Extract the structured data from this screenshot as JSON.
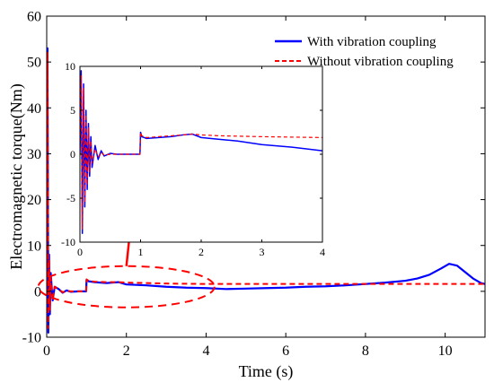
{
  "chart_data": [
    {
      "type": "line",
      "xlabel": "Time (s)",
      "ylabel": "Electromagnetic torque(Nm)",
      "xlim": [
        0,
        11
      ],
      "ylim": [
        -10,
        60
      ],
      "xticks": [
        "0",
        "2",
        "4",
        "6",
        "8",
        "10"
      ],
      "yticks": [
        "-10",
        "0",
        "10",
        "20",
        "30",
        "40",
        "50",
        "60"
      ],
      "grid": false,
      "legend": "top-right",
      "series": [
        {
          "name": "With vibration coupling",
          "color": "#0000ff",
          "style": "solid",
          "x": [
            0,
            0.01,
            0.02,
            0.04,
            0.06,
            0.08,
            0.1,
            0.15,
            0.2,
            0.3,
            0.4,
            0.5,
            0.6,
            0.8,
            0.99,
            1.0,
            1.05,
            1.2,
            1.5,
            1.8,
            2.0,
            2.5,
            3.0,
            3.5,
            4.0,
            4.5,
            5.0,
            5.5,
            6.0,
            6.5,
            7.0,
            7.5,
            8.0,
            8.5,
            9.0,
            9.3,
            9.6,
            9.9,
            10.1,
            10.3,
            10.5,
            10.7,
            10.9,
            11.0
          ],
          "y": [
            0,
            35,
            53,
            -9,
            8,
            -5,
            4,
            -2,
            1,
            0.5,
            -0.3,
            0.2,
            -0.1,
            0,
            0,
            2.5,
            2.2,
            2.0,
            1.8,
            2.0,
            1.5,
            1.3,
            1.0,
            0.8,
            0.7,
            0.5,
            0.6,
            0.7,
            0.8,
            1.0,
            1.1,
            1.3,
            1.6,
            1.9,
            2.3,
            2.8,
            3.6,
            5.0,
            6.0,
            5.6,
            4.2,
            2.8,
            1.8,
            1.6
          ]
        },
        {
          "name": "Without vibration coupling",
          "color": "#ff0000",
          "style": "dashed",
          "x": [
            0,
            0.01,
            0.02,
            0.04,
            0.06,
            0.08,
            0.1,
            0.15,
            0.2,
            0.3,
            0.4,
            0.5,
            0.6,
            0.8,
            0.99,
            1.0,
            1.05,
            1.2,
            1.5,
            1.8,
            2.0,
            2.5,
            3.0,
            4.0,
            6.0,
            8.0,
            10.0,
            11.0
          ],
          "y": [
            0,
            34,
            52,
            -8,
            7,
            -4,
            3,
            -2,
            1,
            0.4,
            -0.2,
            0.1,
            0,
            0,
            0,
            2.6,
            2.3,
            2.1,
            2.0,
            2.0,
            1.9,
            1.8,
            1.7,
            1.6,
            1.6,
            1.6,
            1.6,
            1.6
          ]
        }
      ]
    },
    {
      "type": "line",
      "position": "inset",
      "xlim": [
        0,
        4
      ],
      "ylim": [
        -10,
        10
      ],
      "xticks": [
        "0",
        "1",
        "2",
        "3",
        "4"
      ],
      "yticks": [
        "-10",
        "-5",
        "0",
        "5",
        "10"
      ],
      "series": [
        {
          "name": "With vibration coupling",
          "color": "#0000ff",
          "style": "solid",
          "x": [
            0,
            0.02,
            0.04,
            0.06,
            0.08,
            0.1,
            0.12,
            0.14,
            0.16,
            0.18,
            0.2,
            0.25,
            0.3,
            0.35,
            0.4,
            0.5,
            0.6,
            0.7,
            0.8,
            0.9,
            0.99,
            1.0,
            1.02,
            1.1,
            1.3,
            1.5,
            1.7,
            1.85,
            2.0,
            2.3,
            2.6,
            3.0,
            3.5,
            4.0
          ],
          "y": [
            0,
            9.5,
            -9,
            8,
            -6,
            5,
            -4,
            3.5,
            -2.5,
            2,
            -1.5,
            1,
            -0.6,
            0.4,
            -0.2,
            0.1,
            0,
            0,
            0,
            0,
            0,
            2.5,
            2.0,
            1.8,
            1.9,
            2.0,
            2.2,
            2.3,
            1.9,
            1.7,
            1.5,
            1.1,
            0.8,
            0.4
          ]
        },
        {
          "name": "Without vibration coupling",
          "color": "#ff0000",
          "style": "dashed",
          "x": [
            0,
            0.02,
            0.04,
            0.06,
            0.08,
            0.1,
            0.12,
            0.14,
            0.16,
            0.18,
            0.2,
            0.25,
            0.3,
            0.35,
            0.4,
            0.5,
            0.6,
            0.8,
            0.99,
            1.0,
            1.02,
            1.1,
            1.3,
            1.5,
            1.7,
            1.85,
            2.0,
            2.3,
            3.0,
            4.0
          ],
          "y": [
            0,
            9,
            -8.5,
            7.5,
            -5.5,
            4.5,
            -3.5,
            3,
            -2,
            1.5,
            -1,
            0.6,
            -0.3,
            0.2,
            -0.1,
            0,
            0,
            0,
            0,
            2.5,
            2.1,
            1.9,
            2.0,
            2.1,
            2.2,
            2.3,
            2.2,
            2.1,
            2.0,
            1.9
          ]
        }
      ]
    }
  ]
}
